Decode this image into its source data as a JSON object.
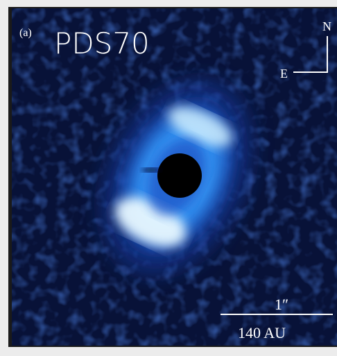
{
  "labels": {
    "panel": "(a)",
    "title": "PDS70",
    "north": "N",
    "east": "E",
    "scale_angle": "1″",
    "scale_distance": "140 AU"
  }
}
